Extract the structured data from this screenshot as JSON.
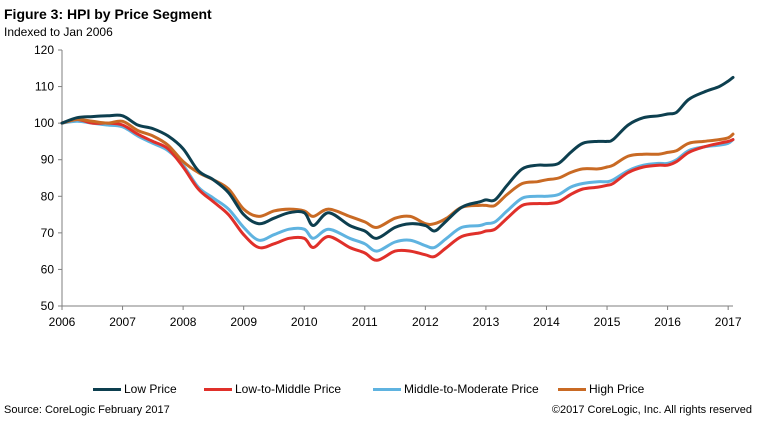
{
  "header": {
    "title": "Figure 3: HPI by Price Segment",
    "subtitle": "Indexed to Jan 2006"
  },
  "footer": {
    "source": "Source: CoreLogic February 2017",
    "copyright": "©2017 CoreLogic, Inc. All rights reserved"
  },
  "chart_data": {
    "type": "line",
    "title": "Figure 3: HPI by Price Segment",
    "subtitle": "Indexed to Jan 2006",
    "xlabel": "",
    "ylabel": "",
    "xlim": [
      2006,
      2017.08
    ],
    "ylim": [
      50,
      120
    ],
    "x_ticks": [
      2006,
      2007,
      2008,
      2009,
      2010,
      2011,
      2012,
      2013,
      2014,
      2015,
      2016,
      2017
    ],
    "y_ticks": [
      50,
      60,
      70,
      80,
      90,
      100,
      110,
      120
    ],
    "grid": false,
    "legend_position": "bottom",
    "series": [
      {
        "name": "Low Price",
        "color": "#0d3f4f",
        "points": [
          [
            2006,
            100
          ],
          [
            2006.25,
            101.5
          ],
          [
            2006.5,
            101.8
          ],
          [
            2006.75,
            102
          ],
          [
            2007,
            102
          ],
          [
            2007.25,
            99.5
          ],
          [
            2007.5,
            98.5
          ],
          [
            2007.75,
            96.5
          ],
          [
            2008,
            93
          ],
          [
            2008.25,
            87
          ],
          [
            2008.5,
            84.5
          ],
          [
            2008.75,
            81
          ],
          [
            2009,
            75
          ],
          [
            2009.25,
            72.5
          ],
          [
            2009.5,
            74
          ],
          [
            2009.75,
            75.5
          ],
          [
            2010,
            75.5
          ],
          [
            2010.15,
            72
          ],
          [
            2010.4,
            75.5
          ],
          [
            2010.75,
            72
          ],
          [
            2011,
            70.5
          ],
          [
            2011.2,
            68.5
          ],
          [
            2011.5,
            71.5
          ],
          [
            2011.75,
            72.5
          ],
          [
            2012,
            72
          ],
          [
            2012.15,
            70.5
          ],
          [
            2012.3,
            72.5
          ],
          [
            2012.6,
            77
          ],
          [
            2012.9,
            78.5
          ],
          [
            2013,
            79
          ],
          [
            2013.15,
            79
          ],
          [
            2013.35,
            83
          ],
          [
            2013.6,
            87.5
          ],
          [
            2013.85,
            88.5
          ],
          [
            2014,
            88.5
          ],
          [
            2014.2,
            89
          ],
          [
            2014.4,
            92
          ],
          [
            2014.6,
            94.5
          ],
          [
            2014.85,
            95
          ],
          [
            2015,
            95
          ],
          [
            2015.1,
            95.5
          ],
          [
            2015.35,
            99.5
          ],
          [
            2015.6,
            101.5
          ],
          [
            2015.85,
            102
          ],
          [
            2016,
            102.5
          ],
          [
            2016.15,
            103
          ],
          [
            2016.35,
            106.5
          ],
          [
            2016.6,
            108.5
          ],
          [
            2016.85,
            110
          ],
          [
            2017,
            111.5
          ],
          [
            2017.08,
            112.5
          ]
        ]
      },
      {
        "name": "Low-to-Middle Price",
        "color": "#e0302a",
        "points": [
          [
            2006,
            100
          ],
          [
            2006.25,
            101
          ],
          [
            2006.5,
            100
          ],
          [
            2006.75,
            100
          ],
          [
            2007,
            99.5
          ],
          [
            2007.25,
            97
          ],
          [
            2007.5,
            95
          ],
          [
            2007.75,
            93
          ],
          [
            2008,
            88
          ],
          [
            2008.25,
            82
          ],
          [
            2008.5,
            78.5
          ],
          [
            2008.75,
            75
          ],
          [
            2009,
            69.5
          ],
          [
            2009.25,
            66
          ],
          [
            2009.5,
            67
          ],
          [
            2009.75,
            68.5
          ],
          [
            2010,
            68.5
          ],
          [
            2010.15,
            66
          ],
          [
            2010.4,
            69
          ],
          [
            2010.75,
            66
          ],
          [
            2011,
            64.5
          ],
          [
            2011.2,
            62.5
          ],
          [
            2011.5,
            65
          ],
          [
            2011.75,
            65
          ],
          [
            2012,
            64
          ],
          [
            2012.15,
            63.5
          ],
          [
            2012.35,
            66
          ],
          [
            2012.6,
            69
          ],
          [
            2012.9,
            70
          ],
          [
            2013,
            70.5
          ],
          [
            2013.15,
            71
          ],
          [
            2013.35,
            74
          ],
          [
            2013.6,
            77.5
          ],
          [
            2013.85,
            78
          ],
          [
            2014,
            78
          ],
          [
            2014.2,
            78.5
          ],
          [
            2014.4,
            80.5
          ],
          [
            2014.6,
            82
          ],
          [
            2014.85,
            82.5
          ],
          [
            2015,
            83
          ],
          [
            2015.1,
            83.5
          ],
          [
            2015.35,
            86.5
          ],
          [
            2015.6,
            88
          ],
          [
            2015.85,
            88.5
          ],
          [
            2016,
            88.5
          ],
          [
            2016.15,
            89.5
          ],
          [
            2016.35,
            92
          ],
          [
            2016.6,
            93.5
          ],
          [
            2016.85,
            94.5
          ],
          [
            2017,
            95
          ],
          [
            2017.08,
            95.5
          ]
        ]
      },
      {
        "name": "Middle-to-Moderate Price",
        "color": "#5fb3e0",
        "points": [
          [
            2006,
            100
          ],
          [
            2006.25,
            100.5
          ],
          [
            2006.5,
            100
          ],
          [
            2006.75,
            99.5
          ],
          [
            2007,
            99
          ],
          [
            2007.25,
            96.5
          ],
          [
            2007.5,
            94.5
          ],
          [
            2007.75,
            92.5
          ],
          [
            2008,
            88.5
          ],
          [
            2008.25,
            82.5
          ],
          [
            2008.5,
            79.5
          ],
          [
            2008.75,
            76.5
          ],
          [
            2009,
            71.5
          ],
          [
            2009.25,
            68
          ],
          [
            2009.5,
            69.5
          ],
          [
            2009.75,
            71
          ],
          [
            2010,
            71
          ],
          [
            2010.15,
            68.5
          ],
          [
            2010.4,
            71
          ],
          [
            2010.75,
            68.5
          ],
          [
            2011,
            67
          ],
          [
            2011.2,
            65
          ],
          [
            2011.5,
            67.5
          ],
          [
            2011.75,
            68
          ],
          [
            2012,
            66.5
          ],
          [
            2012.15,
            66
          ],
          [
            2012.35,
            68.5
          ],
          [
            2012.6,
            71.5
          ],
          [
            2012.9,
            72
          ],
          [
            2013,
            72.5
          ],
          [
            2013.15,
            73
          ],
          [
            2013.35,
            76
          ],
          [
            2013.6,
            79.5
          ],
          [
            2013.85,
            80
          ],
          [
            2014,
            80
          ],
          [
            2014.2,
            80.5
          ],
          [
            2014.4,
            82.5
          ],
          [
            2014.6,
            83.5
          ],
          [
            2014.85,
            84
          ],
          [
            2015,
            84
          ],
          [
            2015.1,
            84.5
          ],
          [
            2015.35,
            87
          ],
          [
            2015.6,
            88.5
          ],
          [
            2015.85,
            89
          ],
          [
            2016,
            89
          ],
          [
            2016.15,
            90
          ],
          [
            2016.35,
            92.5
          ],
          [
            2016.6,
            93.5
          ],
          [
            2016.85,
            94
          ],
          [
            2017,
            94.5
          ],
          [
            2017.08,
            95.5
          ]
        ]
      },
      {
        "name": "High Price",
        "color": "#c96a24",
        "points": [
          [
            2006,
            100
          ],
          [
            2006.25,
            101
          ],
          [
            2006.5,
            100.5
          ],
          [
            2006.75,
            100
          ],
          [
            2007,
            100.5
          ],
          [
            2007.25,
            98
          ],
          [
            2007.5,
            96.5
          ],
          [
            2007.75,
            94
          ],
          [
            2008,
            89.5
          ],
          [
            2008.25,
            86.5
          ],
          [
            2008.5,
            84.5
          ],
          [
            2008.75,
            82
          ],
          [
            2009,
            76.5
          ],
          [
            2009.25,
            74.5
          ],
          [
            2009.5,
            76
          ],
          [
            2009.75,
            76.5
          ],
          [
            2010,
            76
          ],
          [
            2010.15,
            74.5
          ],
          [
            2010.4,
            76.5
          ],
          [
            2010.75,
            74.5
          ],
          [
            2011,
            73
          ],
          [
            2011.2,
            71.5
          ],
          [
            2011.5,
            74
          ],
          [
            2011.75,
            74.5
          ],
          [
            2012,
            72.5
          ],
          [
            2012.15,
            72.5
          ],
          [
            2012.35,
            74
          ],
          [
            2012.6,
            77
          ],
          [
            2012.9,
            77.5
          ],
          [
            2013,
            77.5
          ],
          [
            2013.15,
            77.5
          ],
          [
            2013.35,
            80.5
          ],
          [
            2013.6,
            83.5
          ],
          [
            2013.85,
            84
          ],
          [
            2014,
            84.5
          ],
          [
            2014.2,
            85
          ],
          [
            2014.4,
            86.5
          ],
          [
            2014.6,
            87.5
          ],
          [
            2014.85,
            87.5
          ],
          [
            2015,
            88
          ],
          [
            2015.1,
            88.5
          ],
          [
            2015.35,
            91
          ],
          [
            2015.6,
            91.5
          ],
          [
            2015.85,
            91.5
          ],
          [
            2016,
            92
          ],
          [
            2016.15,
            92.5
          ],
          [
            2016.35,
            94.5
          ],
          [
            2016.6,
            95
          ],
          [
            2016.85,
            95.5
          ],
          [
            2017,
            96
          ],
          [
            2017.08,
            97
          ]
        ]
      }
    ]
  }
}
